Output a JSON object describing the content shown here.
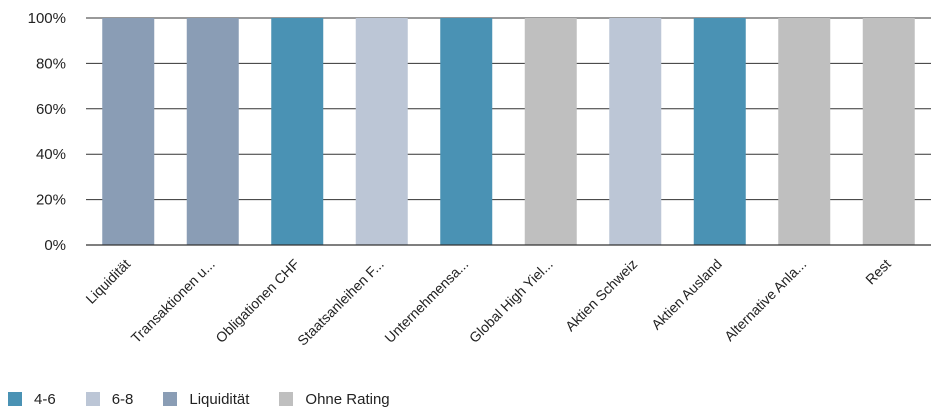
{
  "chart_data": {
    "type": "bar",
    "stacked": true,
    "categories": [
      "Liquidität",
      "Transaktionen u...",
      "Obligationen CHF",
      "Staatsanleihen F...",
      "Unternehmensa...",
      "Global High Yiel...",
      "Aktien Schweiz",
      "Aktien Ausland",
      "Alternative Anla...",
      "Rest"
    ],
    "bar_series": [
      "Liquidität",
      "Liquidität",
      "4-6",
      "6-8",
      "4-6",
      "Ohne Rating",
      "6-8",
      "4-6",
      "Ohne Rating",
      "Ohne Rating"
    ],
    "values": [
      100,
      100,
      100,
      100,
      100,
      100,
      100,
      100,
      100,
      100
    ],
    "ylim": [
      0,
      100
    ],
    "yticks": [
      0,
      20,
      40,
      60,
      80,
      100
    ],
    "ytick_labels": [
      "0%",
      "20%",
      "40%",
      "60%",
      "80%",
      "100%"
    ],
    "grid": true,
    "legend_position": "bottom-left",
    "legend": [
      {
        "name": "4-6",
        "color": "#4A92B4"
      },
      {
        "name": "6-8",
        "color": "#BCC6D6"
      },
      {
        "name": "Liquidität",
        "color": "#8A9DB5"
      },
      {
        "name": "Ohne Rating",
        "color": "#BFBFBF"
      }
    ]
  }
}
